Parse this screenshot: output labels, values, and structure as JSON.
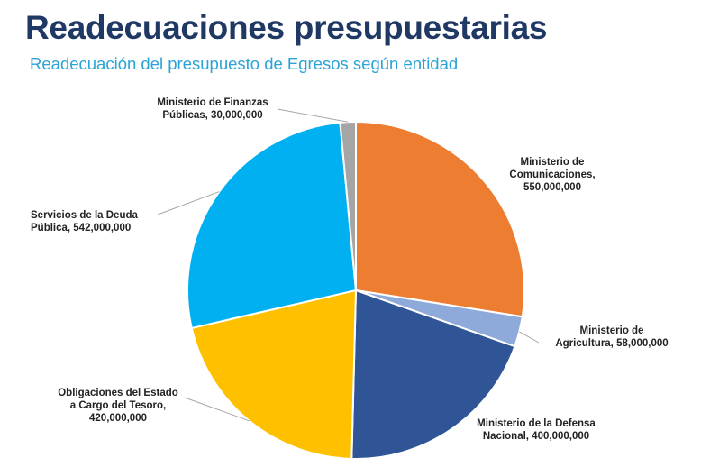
{
  "header": {
    "title": "Readecuaciones presupuestarias",
    "subtitle": "Readecuación del presupuesto de Egresos según entidad"
  },
  "chart_data": {
    "type": "pie",
    "title": "Readecuación del presupuesto de Egresos según entidad",
    "categories": [
      "Ministerio de Comunicaciones",
      "Ministerio de Agricultura",
      "Ministerio de la Defensa Nacional",
      "Obligaciones del Estado a Cargo del Tesoro",
      "Servicios de la Deuda Pública",
      "Ministerio de Finanzas Públicas"
    ],
    "values": [
      550000000,
      58000000,
      400000000,
      420000000,
      542000000,
      30000000
    ],
    "colors": [
      "#ed7d31",
      "#8eaadb",
      "#2f5597",
      "#ffc000",
      "#00b0f0",
      "#a5a5a5"
    ],
    "labels": [
      {
        "line1": "Ministerio de",
        "line2": "Comunicaciones,",
        "line3": "550,000,000"
      },
      {
        "line1": "Ministerio de",
        "line2": "Agricultura, 58,000,000"
      },
      {
        "line1": "Ministerio de la Defensa",
        "line2": "Nacional, 400,000,000"
      },
      {
        "line1": "Obligaciones del Estado",
        "line2": "a Cargo del Tesoro,",
        "line3": "420,000,000"
      },
      {
        "line1": "Servicios de la Deuda",
        "line2": "Pública, 542,000,000"
      },
      {
        "line1": "Ministerio de Finanzas",
        "line2": "Públicas, 30,000,000"
      }
    ],
    "legend": "none"
  }
}
